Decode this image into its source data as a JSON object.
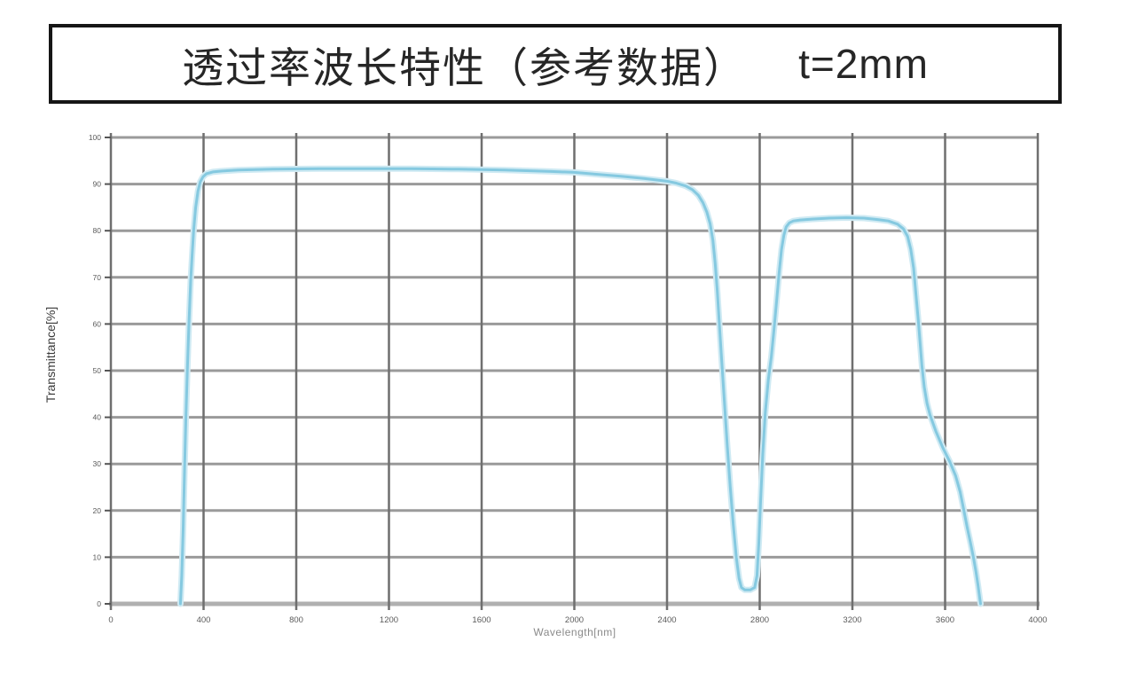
{
  "header": {
    "title": "透过率波长特性（参考数据）",
    "spec": "t=2mm"
  },
  "chart_data": {
    "type": "line",
    "title": "透过率波长特性（参考数据） t=2mm",
    "xlabel": "Wavelength[nm]",
    "ylabel": "Transmittance[%]",
    "xlim": [
      0,
      4000
    ],
    "ylim": [
      0,
      100
    ],
    "x_ticks": [
      0,
      400,
      800,
      1200,
      1600,
      2000,
      2400,
      2800,
      3200,
      3600,
      4000
    ],
    "y_ticks": [
      0,
      10,
      20,
      30,
      40,
      50,
      60,
      70,
      80,
      90,
      100
    ],
    "grid": true,
    "legend": "none",
    "colors": {
      "curve": "#85c9e0",
      "curve_halo": "#cfeaf3",
      "grid_horizontal": "#9a9a9a",
      "grid_vertical": "#6f6f6f",
      "axis": "#b0b0b0",
      "tick": "#555555",
      "tick_label": "#5a5a5a"
    },
    "series": [
      {
        "name": "transmittance",
        "points": [
          [
            300,
            0
          ],
          [
            306,
            6
          ],
          [
            312,
            16
          ],
          [
            318,
            29
          ],
          [
            324,
            40
          ],
          [
            330,
            50
          ],
          [
            337,
            60
          ],
          [
            344,
            69
          ],
          [
            351,
            75
          ],
          [
            357,
            80
          ],
          [
            366,
            85
          ],
          [
            376,
            88.5
          ],
          [
            386,
            90.5
          ],
          [
            398,
            91.6
          ],
          [
            412,
            92.2
          ],
          [
            440,
            92.6
          ],
          [
            480,
            92.8
          ],
          [
            550,
            93
          ],
          [
            700,
            93.2
          ],
          [
            900,
            93.3
          ],
          [
            1100,
            93.3
          ],
          [
            1300,
            93.3
          ],
          [
            1500,
            93.2
          ],
          [
            1700,
            93
          ],
          [
            1900,
            92.7
          ],
          [
            2000,
            92.5
          ],
          [
            2100,
            92.1
          ],
          [
            2200,
            91.7
          ],
          [
            2300,
            91.2
          ],
          [
            2400,
            90.6
          ],
          [
            2440,
            90.2
          ],
          [
            2480,
            89.6
          ],
          [
            2510,
            88.8
          ],
          [
            2535,
            87.6
          ],
          [
            2555,
            86
          ],
          [
            2572,
            84
          ],
          [
            2586,
            81.5
          ],
          [
            2598,
            78
          ],
          [
            2608,
            73
          ],
          [
            2617,
            67
          ],
          [
            2626,
            60
          ],
          [
            2636,
            52
          ],
          [
            2648,
            43
          ],
          [
            2660,
            34
          ],
          [
            2673,
            25
          ],
          [
            2686,
            17
          ],
          [
            2699,
            10
          ],
          [
            2711,
            5.5
          ],
          [
            2721,
            3.5
          ],
          [
            2735,
            3
          ],
          [
            2760,
            3
          ],
          [
            2778,
            3.5
          ],
          [
            2788,
            6
          ],
          [
            2796,
            13
          ],
          [
            2804,
            22
          ],
          [
            2813,
            32
          ],
          [
            2824,
            41
          ],
          [
            2837,
            48
          ],
          [
            2850,
            53
          ],
          [
            2862,
            59
          ],
          [
            2873,
            65
          ],
          [
            2884,
            71
          ],
          [
            2894,
            76
          ],
          [
            2904,
            79
          ],
          [
            2914,
            80.8
          ],
          [
            2928,
            81.7
          ],
          [
            2945,
            82.1
          ],
          [
            2975,
            82.3
          ],
          [
            3025,
            82.5
          ],
          [
            3100,
            82.7
          ],
          [
            3175,
            82.8
          ],
          [
            3250,
            82.7
          ],
          [
            3310,
            82.4
          ],
          [
            3355,
            82.1
          ],
          [
            3395,
            81.4
          ],
          [
            3420,
            80.4
          ],
          [
            3438,
            78.8
          ],
          [
            3452,
            76
          ],
          [
            3464,
            72
          ],
          [
            3475,
            66
          ],
          [
            3484,
            61
          ],
          [
            3492,
            56
          ],
          [
            3500,
            51
          ],
          [
            3510,
            46.5
          ],
          [
            3522,
            43
          ],
          [
            3535,
            40.5
          ],
          [
            3560,
            37
          ],
          [
            3590,
            33.5
          ],
          [
            3620,
            30.5
          ],
          [
            3645,
            27.5
          ],
          [
            3665,
            24
          ],
          [
            3681,
            20
          ],
          [
            3695,
            16.5
          ],
          [
            3710,
            13
          ],
          [
            3722,
            10
          ],
          [
            3733,
            7
          ],
          [
            3742,
            4
          ],
          [
            3750,
            1
          ],
          [
            3753,
            0
          ]
        ]
      }
    ]
  }
}
